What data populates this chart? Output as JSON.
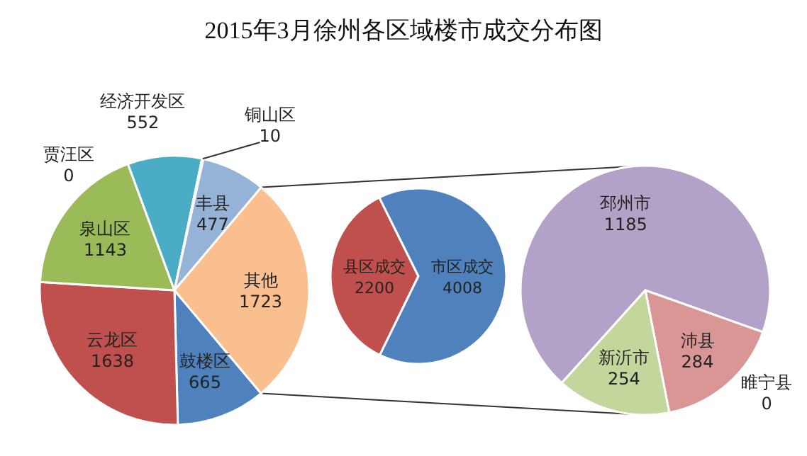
{
  "chart_data": [
    {
      "type": "pie",
      "title": "2015年3月徐州各区域楼市成交分布图",
      "categories": [
        "鼓楼区",
        "云龙区",
        "泉山区",
        "贾汪区",
        "经济开发区",
        "铜山区",
        "丰县",
        "其他"
      ],
      "values": [
        665,
        1638,
        1143,
        0,
        552,
        10,
        477,
        1723
      ],
      "colors": [
        "#4f81bd",
        "#c0504d",
        "#9bbb59",
        null,
        "#4bacc6",
        "#f79646",
        "#95b3d7",
        "#fabf8f"
      ],
      "value_labels": [
        "665",
        "1638",
        "1143",
        "0",
        "552",
        "10",
        "477",
        "1723"
      ]
    },
    {
      "type": "pie",
      "categories": [
        "县区成交",
        "市区成交"
      ],
      "values": [
        2200,
        4008
      ],
      "colors": [
        "#c0504d",
        "#4f81bd"
      ],
      "data_labels": true
    },
    {
      "type": "pie",
      "categories": [
        "邳州市",
        "沛县",
        "新沂市",
        "睢宁县"
      ],
      "values": [
        1185,
        284,
        254,
        0
      ],
      "colors": [
        "#b3a2c7",
        "#d99694",
        "#c3d69b",
        null
      ],
      "value_labels": [
        "1185",
        "284",
        "254",
        "0"
      ]
    }
  ]
}
